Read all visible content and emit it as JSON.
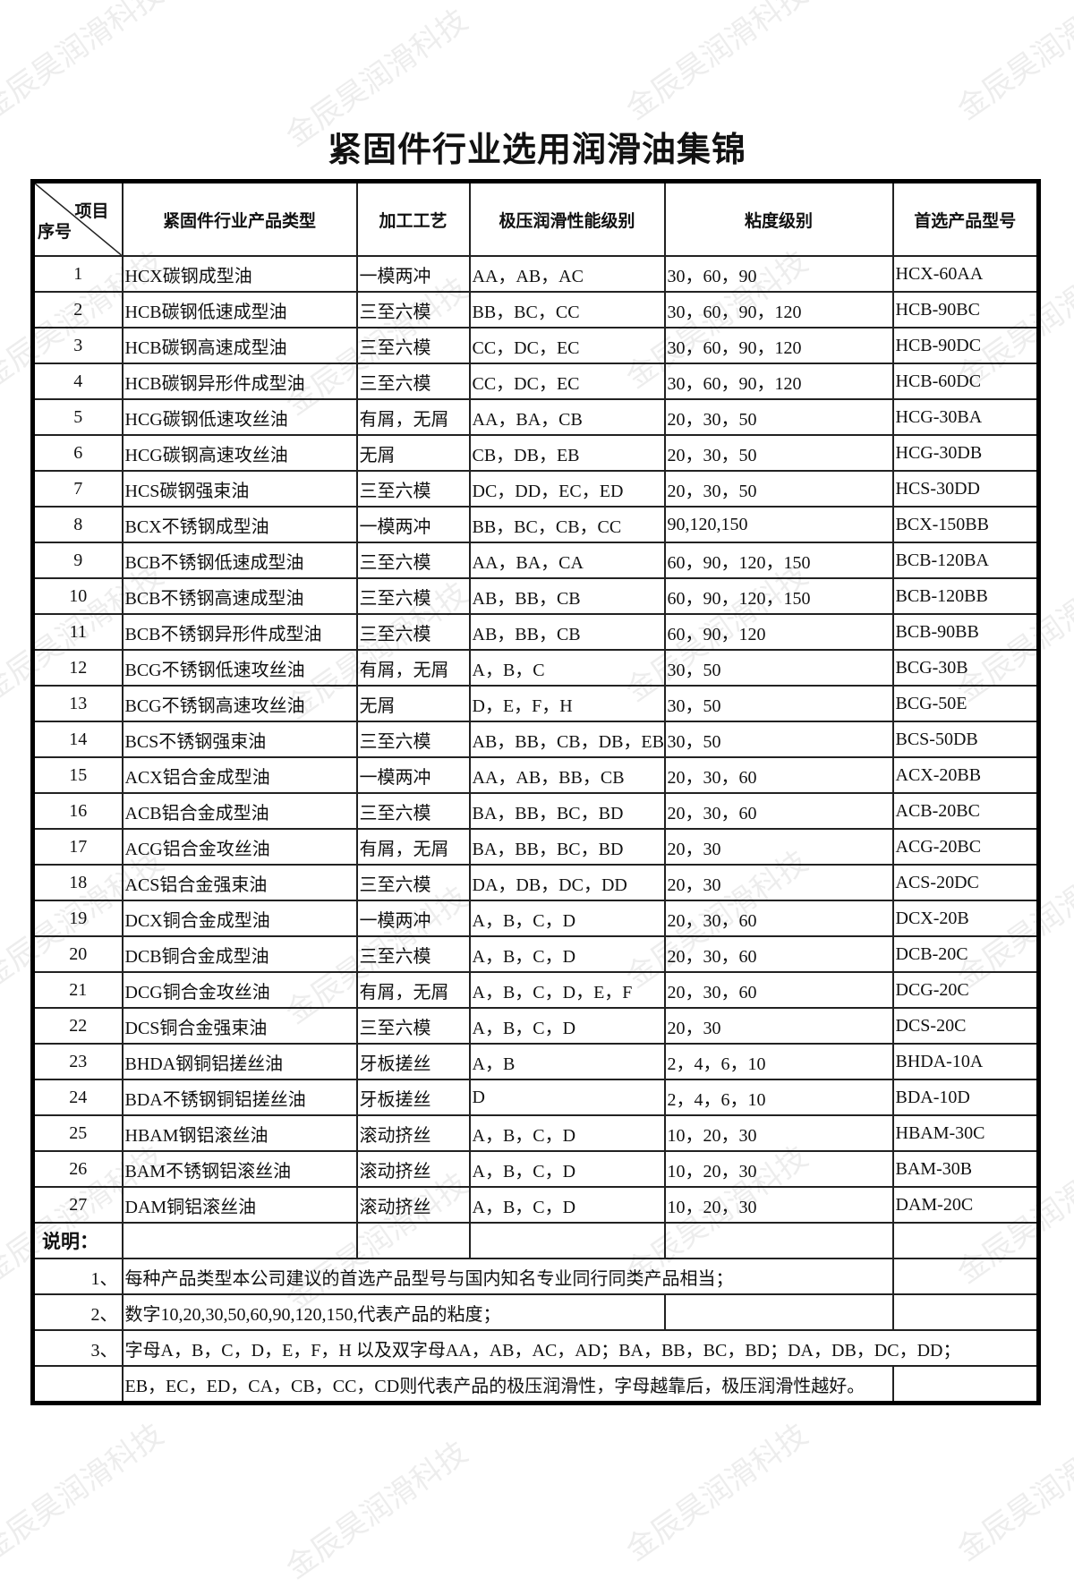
{
  "watermark": "金辰昊润滑科技",
  "title": "紧固件行业选用润滑油集锦",
  "header": {
    "item": "项目",
    "seq": "序号",
    "cols": [
      "紧固件行业产品类型",
      "加工工艺",
      "极压润滑性能级别",
      "粘度级别",
      "首选产品型号"
    ]
  },
  "rows": [
    [
      "1",
      "HCX碳钢成型油",
      "一模两冲",
      "AA，AB，AC",
      "30，60，90",
      "HCX-60AA"
    ],
    [
      "2",
      "HCB碳钢低速成型油",
      "三至六模",
      "BB，BC，CC",
      "30，60，90，120",
      "HCB-90BC"
    ],
    [
      "3",
      "HCB碳钢高速成型油",
      "三至六模",
      "CC，DC，EC",
      "30，60，90，120",
      "HCB-90DC"
    ],
    [
      "4",
      "HCB碳钢异形件成型油",
      "三至六模",
      "CC，DC，EC",
      "30，60，90，120",
      "HCB-60DC"
    ],
    [
      "5",
      "HCG碳钢低速攻丝油",
      "有屑，无屑",
      "AA，BA，CB",
      "20，30，50",
      "HCG-30BA"
    ],
    [
      "6",
      "HCG碳钢高速攻丝油",
      "无屑",
      "CB，DB，EB",
      "20，30，50",
      "HCG-30DB"
    ],
    [
      "7",
      "HCS碳钢强束油",
      "三至六模",
      "DC，DD，EC，ED",
      "20，30，50",
      "HCS-30DD"
    ],
    [
      "8",
      "BCX不锈钢成型油",
      "一模两冲",
      "BB，BC，CB，CC",
      "90,120,150",
      "BCX-150BB"
    ],
    [
      "9",
      "BCB不锈钢低速成型油",
      "三至六模",
      "AA，BA，CA",
      "60，90，120，150",
      "BCB-120BA"
    ],
    [
      "10",
      "BCB不锈钢高速成型油",
      "三至六模",
      "AB，BB，CB",
      "60，90，120，150",
      "BCB-120BB"
    ],
    [
      "11",
      "BCB不锈钢异形件成型油",
      "三至六模",
      "AB，BB，CB",
      "60，90，120",
      "BCB-90BB"
    ],
    [
      "12",
      "BCG不锈钢低速攻丝油",
      "有屑，无屑",
      "A，B，C",
      "30，50",
      "BCG-30B"
    ],
    [
      "13",
      "BCG不锈钢高速攻丝油",
      "无屑",
      "D，E，F，H",
      "30，50",
      "BCG-50E"
    ],
    [
      "14",
      "BCS不锈钢强束油",
      "三至六模",
      "AB，BB，CB，DB，EB",
      "30，50",
      "BCS-50DB"
    ],
    [
      "15",
      "ACX铝合金成型油",
      "一模两冲",
      "AA，AB，BB，CB",
      "20，30，60",
      "ACX-20BB"
    ],
    [
      "16",
      "ACB铝合金成型油",
      "三至六模",
      "BA，BB，BC，BD",
      "20，30，60",
      "ACB-20BC"
    ],
    [
      "17",
      "ACG铝合金攻丝油",
      "有屑，无屑",
      "BA，BB，BC，BD",
      "20，30",
      "ACG-20BC"
    ],
    [
      "18",
      "ACS铝合金强束油",
      "三至六模",
      "DA，DB，DC，DD",
      "20，30",
      "ACS-20DC"
    ],
    [
      "19",
      "DCX铜合金成型油",
      "一模两冲",
      "A，B，C，D",
      "20，30，60",
      "DCX-20B"
    ],
    [
      "20",
      "DCB铜合金成型油",
      "三至六模",
      "A，B，C，D",
      "20，30，60",
      "DCB-20C"
    ],
    [
      "21",
      "DCG铜合金攻丝油",
      "有屑，无屑",
      "A，B，C，D，E，F",
      "20，30，60",
      "DCG-20C"
    ],
    [
      "22",
      "DCS铜合金强束油",
      "三至六模",
      "A，B，C，D",
      "20，30",
      "DCS-20C"
    ],
    [
      "23",
      "BHDA钢铜铝搓丝油",
      "牙板搓丝",
      "A，B",
      "2，4，6，10",
      "BHDA-10A"
    ],
    [
      "24",
      "BDA不锈钢铜铝搓丝油",
      "牙板搓丝",
      "D",
      "2，4，6，10",
      "BDA-10D"
    ],
    [
      "25",
      "HBAM钢铝滚丝油",
      "滚动挤丝",
      "A，B，C，D",
      "10，20，30",
      "HBAM-30C"
    ],
    [
      "26",
      "BAM不锈钢铝滚丝油",
      "滚动挤丝",
      "A，B，C，D",
      "10，20，30",
      "BAM-30B"
    ],
    [
      "27",
      "DAM铜铝滚丝油",
      "滚动挤丝",
      "A，B，C，D",
      "10，20，30",
      "DAM-20C"
    ]
  ],
  "notes": {
    "label": "说明：",
    "items": [
      {
        "idx": "1、",
        "text": "每种产品类型本公司建议的首选产品型号与国内知名专业同行同类产品相当；"
      },
      {
        "idx": "2、",
        "text": "数字10,20,30,50,60,90,120,150,代表产品的粘度；"
      },
      {
        "idx": "3、",
        "text": "字母A，B，C，D，E，F，H 以及双字母AA，AB，AC，AD；BA，BB，BC，BD；DA，DB，DC，DD；"
      },
      {
        "idx": "",
        "text": "EB，EC，ED，CA，CB，CC，CD则代表产品的极压润滑性，字母越靠后，极压润滑性越好。"
      }
    ]
  }
}
